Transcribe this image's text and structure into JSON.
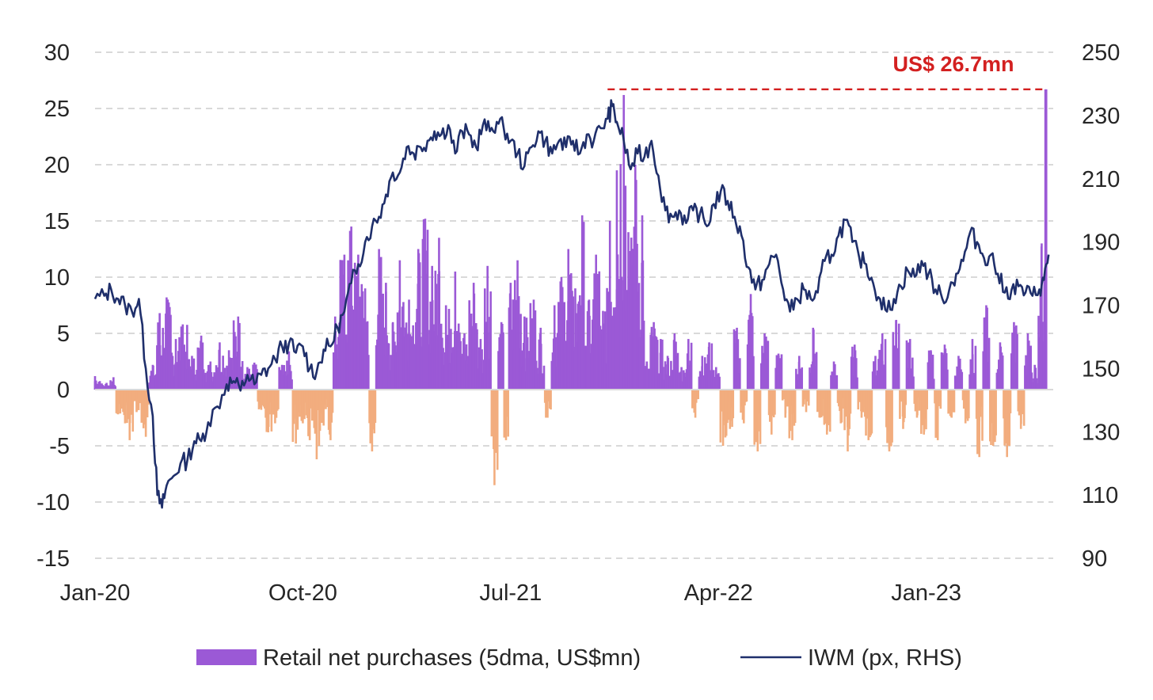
{
  "chart_data": {
    "type": "bar",
    "title": "",
    "colors": {
      "positive_bar": "#9b59d6",
      "negative_bar": "#f2ad7e",
      "line": "#1f2f6b",
      "grid": "#d9d9d9",
      "annotation": "#d32020"
    },
    "x_axis": {
      "ticks": [
        "Jan-20",
        "Oct-20",
        "Jul-21",
        "Apr-22",
        "Jan-23"
      ],
      "tick_positions_months": [
        0,
        9,
        18,
        27,
        36
      ],
      "range_months": [
        0,
        41.5
      ]
    },
    "left_axis": {
      "label": "",
      "range": [
        -15,
        30
      ],
      "ticks": [
        "30",
        "25",
        "20",
        "15",
        "10",
        "5",
        "0",
        "-5",
        "-10",
        "-15"
      ]
    },
    "right_axis": {
      "label": "",
      "range": [
        90,
        250
      ],
      "ticks": [
        "250",
        "230",
        "210",
        "190",
        "170",
        "150",
        "130",
        "110",
        "90"
      ]
    },
    "series": [
      {
        "name": "Retail net purchases (5dma, US$mn)",
        "type": "bar",
        "axis": "left",
        "anchors_month_value": [
          [
            0,
            1.2
          ],
          [
            0.5,
            0.6
          ],
          [
            0.8,
            1.1
          ],
          [
            1.0,
            -2.2
          ],
          [
            1.3,
            -3.0
          ],
          [
            1.5,
            -4.5
          ],
          [
            1.8,
            -2.0
          ],
          [
            2.2,
            -4.2
          ],
          [
            2.5,
            2.2
          ],
          [
            2.8,
            6.8
          ],
          [
            3.1,
            8.2
          ],
          [
            3.5,
            4.5
          ],
          [
            3.8,
            5.8
          ],
          [
            4.2,
            3.0
          ],
          [
            4.6,
            4.8
          ],
          [
            5.0,
            2.5
          ],
          [
            5.4,
            4.2
          ],
          [
            5.8,
            3.5
          ],
          [
            6.2,
            6.5
          ],
          [
            6.6,
            2.0
          ],
          [
            6.9,
            2.4
          ],
          [
            7.2,
            -1.8
          ],
          [
            7.5,
            -3.8
          ],
          [
            7.8,
            -3.0
          ],
          [
            8.1,
            2.2
          ],
          [
            8.4,
            3.4
          ],
          [
            8.7,
            -4.8
          ],
          [
            9.0,
            -3.0
          ],
          [
            9.3,
            -4.5
          ],
          [
            9.6,
            -6.2
          ],
          [
            9.9,
            -3.2
          ],
          [
            10.2,
            -4.5
          ],
          [
            10.4,
            6.5
          ],
          [
            10.8,
            12.0
          ],
          [
            11.1,
            14.5
          ],
          [
            11.4,
            12.0
          ],
          [
            11.7,
            9.0
          ],
          [
            12.0,
            -5.5
          ],
          [
            12.3,
            12.5
          ],
          [
            12.6,
            9.5
          ],
          [
            12.9,
            6.0
          ],
          [
            13.2,
            11.5
          ],
          [
            13.6,
            8.0
          ],
          [
            14.0,
            12.5
          ],
          [
            14.3,
            15.2
          ],
          [
            14.6,
            11.0
          ],
          [
            14.9,
            13.5
          ],
          [
            15.2,
            7.5
          ],
          [
            15.6,
            10.5
          ],
          [
            16.0,
            5.0
          ],
          [
            16.4,
            9.5
          ],
          [
            16.7,
            4.5
          ],
          [
            17.0,
            11.0
          ],
          [
            17.3,
            -8.5
          ],
          [
            17.6,
            6.0
          ],
          [
            17.8,
            -4.5
          ],
          [
            18.0,
            9.5
          ],
          [
            18.3,
            11.5
          ],
          [
            18.6,
            6.5
          ],
          [
            19.0,
            8.0
          ],
          [
            19.3,
            5.5
          ],
          [
            19.6,
            -2.5
          ],
          [
            19.9,
            7.5
          ],
          [
            20.2,
            10.0
          ],
          [
            20.5,
            12.5
          ],
          [
            20.8,
            9.0
          ],
          [
            21.1,
            15.5
          ],
          [
            21.4,
            8.0
          ],
          [
            21.7,
            12.0
          ],
          [
            22.0,
            7.0
          ],
          [
            22.3,
            15.0
          ],
          [
            22.6,
            19.5
          ],
          [
            22.9,
            26.2
          ],
          [
            23.1,
            14.0
          ],
          [
            23.4,
            20.0
          ],
          [
            23.7,
            15.5
          ],
          [
            23.9,
            2.5
          ],
          [
            24.2,
            6.0
          ],
          [
            24.5,
            4.5
          ],
          [
            24.8,
            3.0
          ],
          [
            25.1,
            5.0
          ],
          [
            25.4,
            2.0
          ],
          [
            25.7,
            4.5
          ],
          [
            26.0,
            -2.5
          ],
          [
            26.3,
            3.0
          ],
          [
            26.6,
            4.2
          ],
          [
            26.9,
            2.0
          ],
          [
            27.2,
            -5.0
          ],
          [
            27.5,
            -3.5
          ],
          [
            27.8,
            5.5
          ],
          [
            28.1,
            -3.0
          ],
          [
            28.4,
            8.5
          ],
          [
            28.7,
            -5.5
          ],
          [
            29.0,
            5.0
          ],
          [
            29.3,
            -4.0
          ],
          [
            29.6,
            3.2
          ],
          [
            29.9,
            -2.5
          ],
          [
            30.2,
            -4.5
          ],
          [
            30.5,
            3.0
          ],
          [
            30.8,
            -2.0
          ],
          [
            31.1,
            5.5
          ],
          [
            31.4,
            -2.5
          ],
          [
            31.7,
            -4.0
          ],
          [
            32.0,
            2.5
          ],
          [
            32.3,
            -3.0
          ],
          [
            32.6,
            -5.5
          ],
          [
            32.9,
            4.0
          ],
          [
            33.2,
            -2.5
          ],
          [
            33.5,
            -4.5
          ],
          [
            33.8,
            3.0
          ],
          [
            34.1,
            5.0
          ],
          [
            34.4,
            -5.5
          ],
          [
            34.7,
            6.2
          ],
          [
            35.0,
            -3.5
          ],
          [
            35.3,
            4.5
          ],
          [
            35.6,
            -2.5
          ],
          [
            35.9,
            -4.0
          ],
          [
            36.2,
            3.5
          ],
          [
            36.5,
            -4.5
          ],
          [
            36.8,
            4.0
          ],
          [
            37.1,
            -2.5
          ],
          [
            37.4,
            3.0
          ],
          [
            37.7,
            -3.0
          ],
          [
            38.0,
            4.5
          ],
          [
            38.3,
            -6.0
          ],
          [
            38.6,
            7.5
          ],
          [
            38.9,
            -5.0
          ],
          [
            39.2,
            4.2
          ],
          [
            39.5,
            -6.0
          ],
          [
            39.8,
            6.0
          ],
          [
            40.1,
            -3.5
          ],
          [
            40.4,
            5.0
          ],
          [
            40.7,
            2.2
          ],
          [
            41.0,
            13.0
          ],
          [
            41.2,
            26.7
          ]
        ]
      },
      {
        "name": "IWM (px, RHS)",
        "type": "line",
        "axis": "right",
        "points_month_value": [
          [
            0,
            172
          ],
          [
            0.4,
            173
          ],
          [
            0.7,
            175
          ],
          [
            1.0,
            172
          ],
          [
            1.3,
            170
          ],
          [
            1.6,
            168
          ],
          [
            1.9,
            172
          ],
          [
            2.2,
            150
          ],
          [
            2.5,
            135
          ],
          [
            2.7,
            110
          ],
          [
            2.9,
            106
          ],
          [
            3.1,
            113
          ],
          [
            3.4,
            116
          ],
          [
            3.7,
            120
          ],
          [
            4.0,
            121
          ],
          [
            4.3,
            127
          ],
          [
            4.6,
            127
          ],
          [
            4.9,
            133
          ],
          [
            5.3,
            138
          ],
          [
            5.7,
            145
          ],
          [
            6.0,
            146
          ],
          [
            6.3,
            143
          ],
          [
            6.6,
            148
          ],
          [
            6.9,
            145
          ],
          [
            7.2,
            148
          ],
          [
            7.5,
            150
          ],
          [
            7.8,
            153
          ],
          [
            8.1,
            157
          ],
          [
            8.4,
            158
          ],
          [
            8.7,
            155
          ],
          [
            9.0,
            157
          ],
          [
            9.3,
            150
          ],
          [
            9.6,
            149
          ],
          [
            9.9,
            156
          ],
          [
            10.2,
            157
          ],
          [
            10.5,
            163
          ],
          [
            10.8,
            168
          ],
          [
            11.1,
            177
          ],
          [
            11.4,
            183
          ],
          [
            11.7,
            190
          ],
          [
            12.0,
            195
          ],
          [
            12.3,
            198
          ],
          [
            12.6,
            205
          ],
          [
            12.9,
            212
          ],
          [
            13.2,
            212
          ],
          [
            13.5,
            220
          ],
          [
            13.8,
            218
          ],
          [
            14.1,
            220
          ],
          [
            14.4,
            222
          ],
          [
            14.7,
            225
          ],
          [
            15.0,
            224
          ],
          [
            15.3,
            227
          ],
          [
            15.6,
            218
          ],
          [
            15.9,
            225
          ],
          [
            16.2,
            224
          ],
          [
            16.5,
            220
          ],
          [
            16.8,
            227
          ],
          [
            17.1,
            225
          ],
          [
            17.4,
            228
          ],
          [
            17.7,
            226
          ],
          [
            18.0,
            222
          ],
          [
            18.3,
            218
          ],
          [
            18.6,
            214
          ],
          [
            18.9,
            220
          ],
          [
            19.2,
            225
          ],
          [
            19.5,
            222
          ],
          [
            19.8,
            218
          ],
          [
            20.1,
            222
          ],
          [
            20.4,
            220
          ],
          [
            20.7,
            222
          ],
          [
            21.0,
            218
          ],
          [
            21.3,
            224
          ],
          [
            21.6,
            222
          ],
          [
            21.9,
            226
          ],
          [
            22.2,
            229
          ],
          [
            22.4,
            233
          ],
          [
            22.6,
            228
          ],
          [
            22.9,
            222
          ],
          [
            23.2,
            213
          ],
          [
            23.5,
            218
          ],
          [
            23.8,
            217
          ],
          [
            24.1,
            222
          ],
          [
            24.4,
            211
          ],
          [
            24.7,
            200
          ],
          [
            25.0,
            198
          ],
          [
            25.3,
            200
          ],
          [
            25.6,
            196
          ],
          [
            25.9,
            200
          ],
          [
            26.2,
            199
          ],
          [
            26.5,
            195
          ],
          [
            26.8,
            202
          ],
          [
            27.1,
            206
          ],
          [
            27.4,
            203
          ],
          [
            27.7,
            198
          ],
          [
            28.0,
            192
          ],
          [
            28.3,
            182
          ],
          [
            28.6,
            175
          ],
          [
            28.9,
            178
          ],
          [
            29.2,
            183
          ],
          [
            29.5,
            186
          ],
          [
            29.8,
            175
          ],
          [
            30.1,
            168
          ],
          [
            30.4,
            172
          ],
          [
            30.7,
            175
          ],
          [
            31.0,
            172
          ],
          [
            31.3,
            174
          ],
          [
            31.6,
            184
          ],
          [
            31.9,
            186
          ],
          [
            32.2,
            192
          ],
          [
            32.5,
            197
          ],
          [
            32.8,
            190
          ],
          [
            33.1,
            185
          ],
          [
            33.4,
            183
          ],
          [
            33.7,
            177
          ],
          [
            34.0,
            172
          ],
          [
            34.3,
            168
          ],
          [
            34.6,
            172
          ],
          [
            34.9,
            176
          ],
          [
            35.2,
            181
          ],
          [
            35.5,
            179
          ],
          [
            35.8,
            184
          ],
          [
            36.1,
            180
          ],
          [
            36.4,
            175
          ],
          [
            36.7,
            172
          ],
          [
            37.0,
            175
          ],
          [
            37.3,
            180
          ],
          [
            37.6,
            184
          ],
          [
            37.9,
            193
          ],
          [
            38.2,
            190
          ],
          [
            38.5,
            185
          ],
          [
            38.8,
            186
          ],
          [
            39.1,
            180
          ],
          [
            39.4,
            174
          ],
          [
            39.7,
            175
          ],
          [
            40.0,
            176
          ],
          [
            40.3,
            174
          ],
          [
            40.6,
            173
          ],
          [
            40.9,
            175
          ],
          [
            41.1,
            178
          ],
          [
            41.3,
            186
          ]
        ]
      }
    ],
    "annotations": [
      {
        "text": "US$ 26.7mn",
        "value": 26.7,
        "from_month": 22.2,
        "to_month": 41.2,
        "style": "dashed"
      }
    ],
    "legend": {
      "position": "bottom",
      "items": [
        "Retail net purchases (5dma, US$mn)",
        "IWM (px, RHS)"
      ]
    }
  }
}
